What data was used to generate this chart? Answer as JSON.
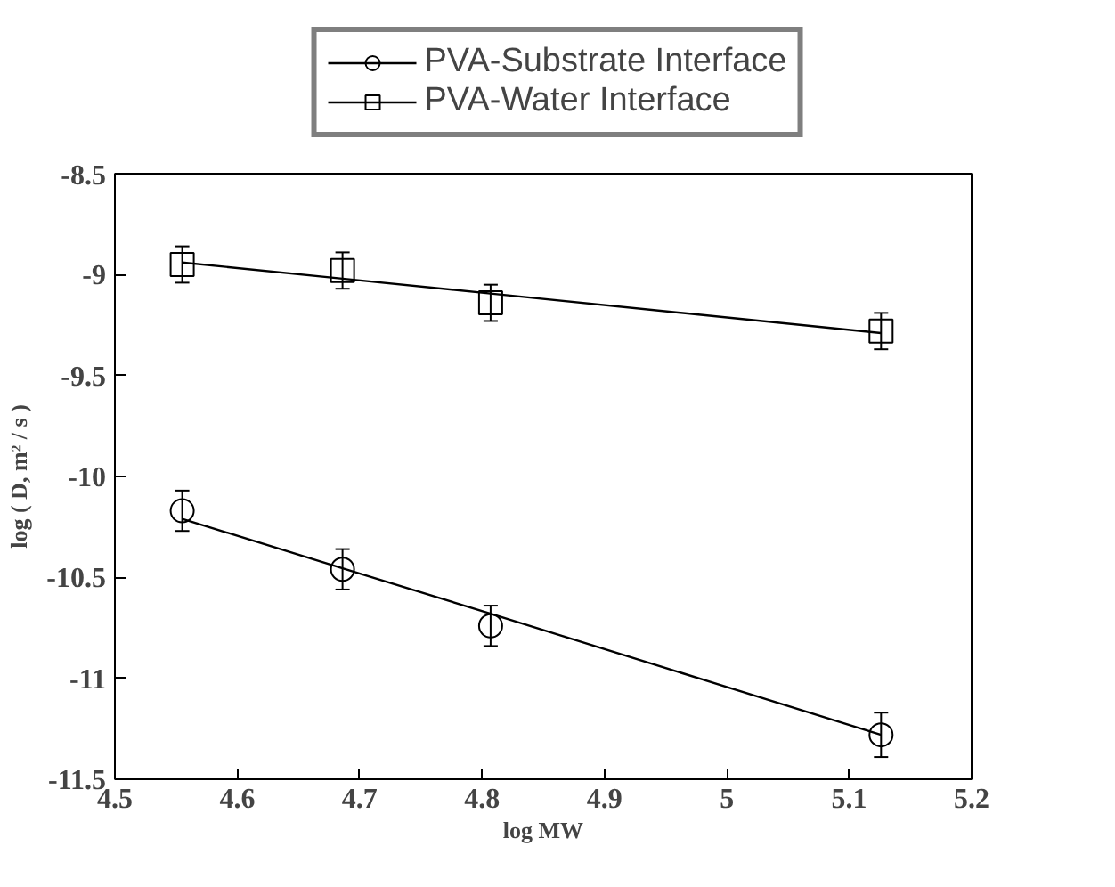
{
  "chart_data": {
    "type": "scatter",
    "xlabel": "log MW",
    "ylabel": "log ( D, m² / s )",
    "xlim": [
      4.5,
      5.2
    ],
    "xticks": [
      4.5,
      4.6,
      4.7,
      4.8,
      4.9,
      5,
      5.1,
      5.2
    ],
    "ylim": [
      -11.5,
      -8.5
    ],
    "yticks": [
      -11.5,
      -11,
      -10.5,
      -10,
      -9.5,
      -9,
      -8.5
    ],
    "grid": false,
    "legend": "top",
    "x": [
      4.555,
      4.686,
      4.807,
      5.126
    ],
    "series": [
      {
        "name": "PVA-Substrate Interface",
        "marker": "circle",
        "color": "#000000",
        "values": [
          -10.17,
          -10.46,
          -10.74,
          -11.28
        ],
        "errors": [
          0.1,
          0.1,
          0.1,
          0.11
        ]
      },
      {
        "type": "line",
        "marker": "none",
        "color": "#000000",
        "values": [
          -10.21,
          -10.455,
          -10.68,
          -11.28
        ]
      },
      {
        "name": "PVA-Water Interface",
        "marker": "square",
        "color": "#000000",
        "values": [
          -8.95,
          -8.98,
          -9.14,
          -9.28
        ],
        "errors": [
          0.09,
          0.09,
          0.09,
          0.09
        ]
      },
      {
        "type": "line",
        "marker": "none",
        "color": "#000000",
        "values": [
          -8.94,
          -9.02,
          -9.094,
          -9.29
        ]
      }
    ]
  }
}
